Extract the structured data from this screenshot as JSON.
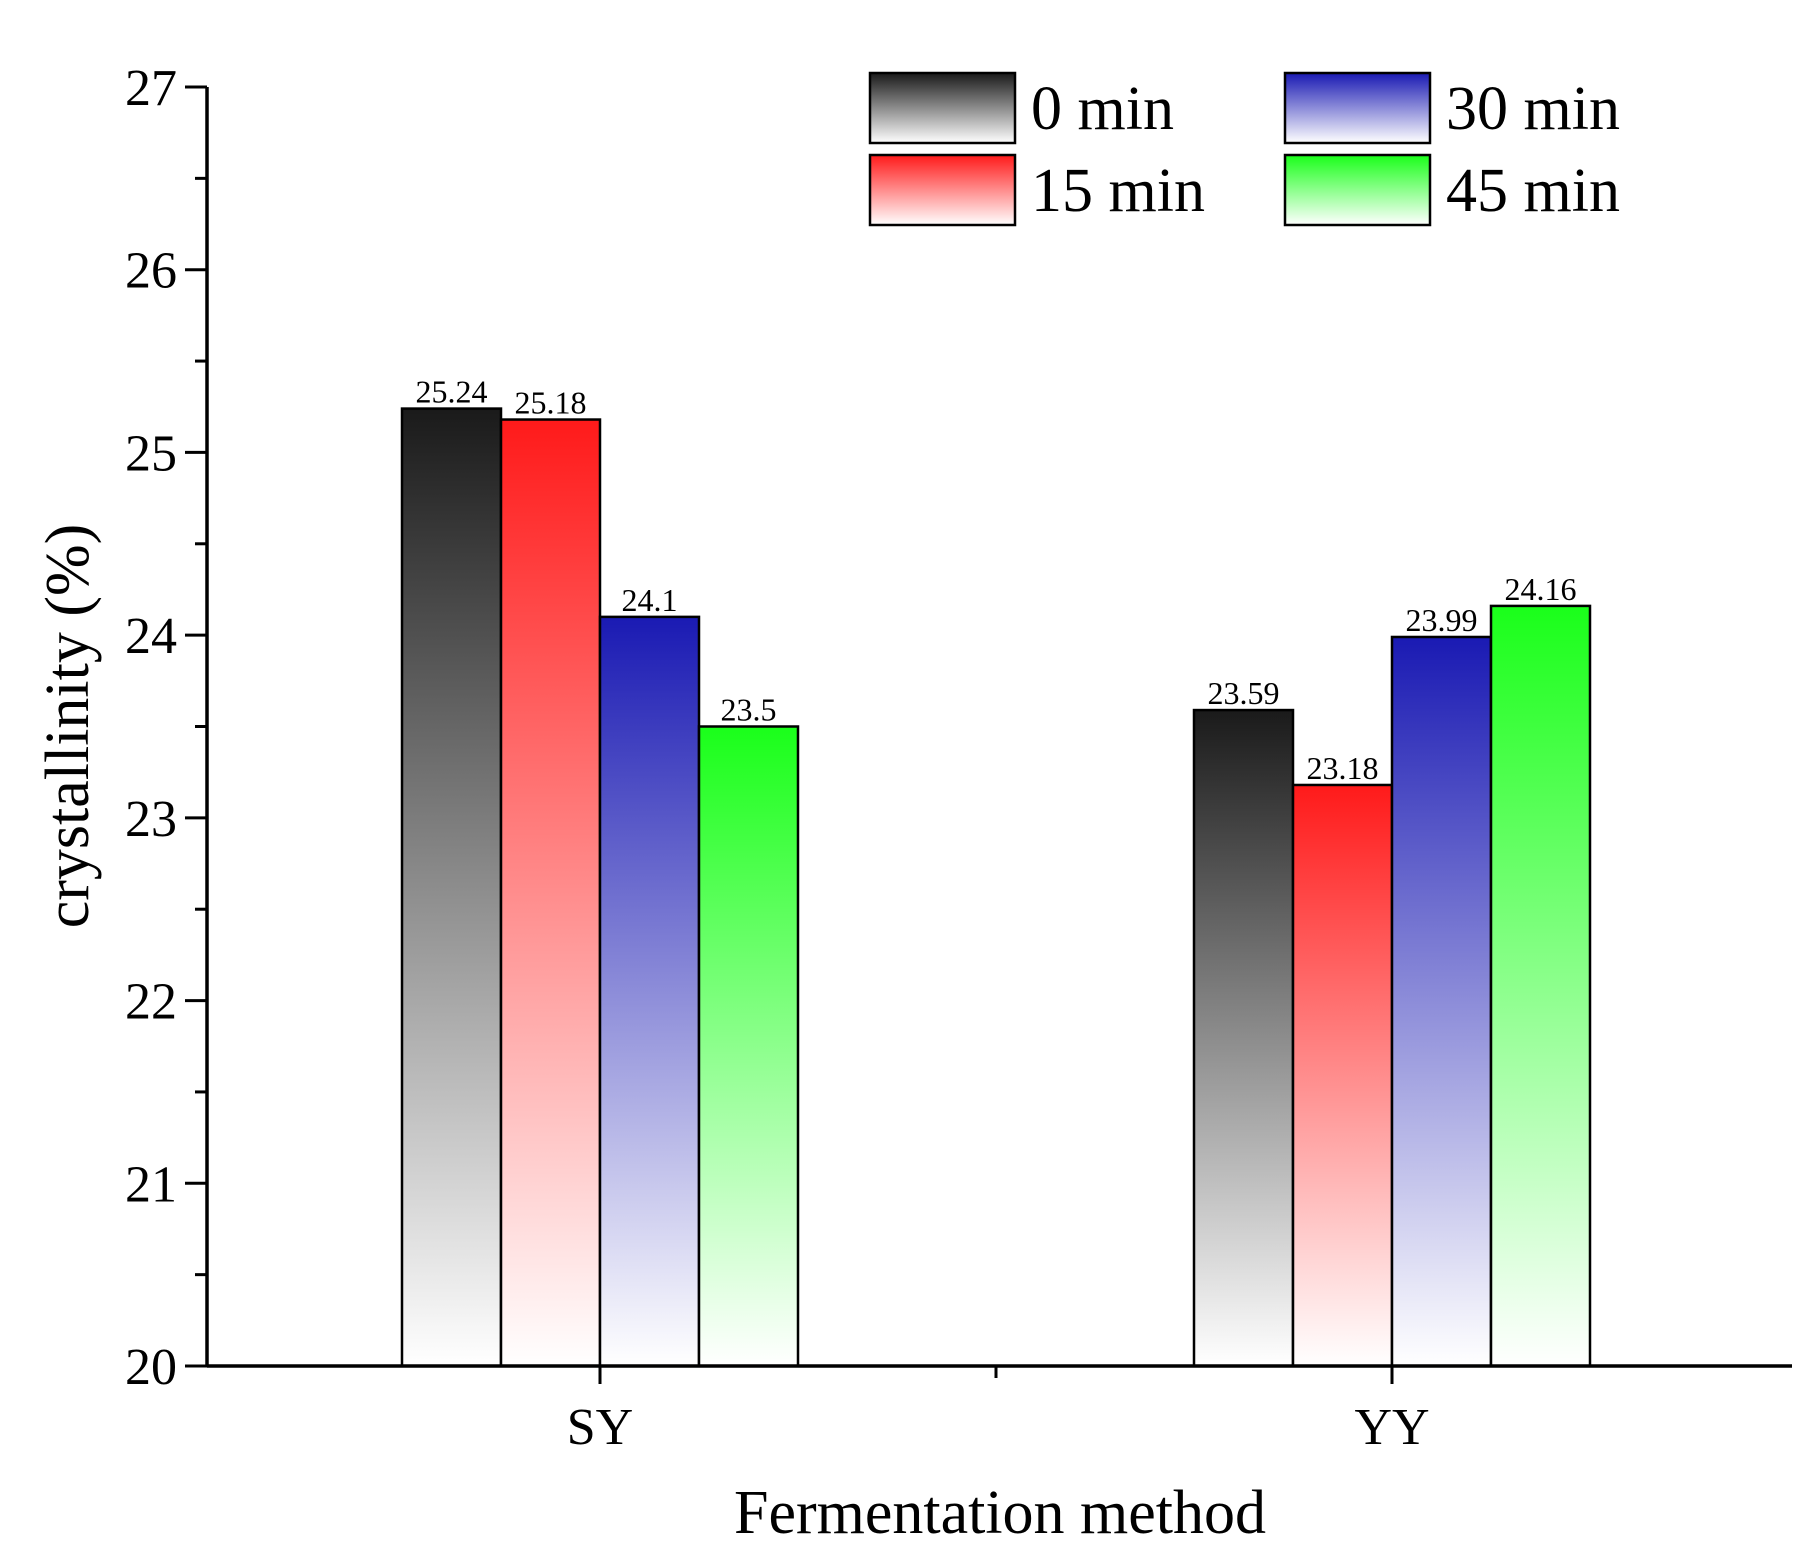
{
  "chart_data": {
    "type": "bar",
    "xlabel": "Fermentation method",
    "ylabel": "crystallinity (%)",
    "ylim": [
      20,
      27
    ],
    "yticks": [
      20,
      21,
      22,
      23,
      24,
      25,
      26,
      27
    ],
    "categories": [
      "SY",
      "YY"
    ],
    "series": [
      {
        "name": "0 min",
        "values": [
          25.24,
          23.59
        ],
        "labels": [
          "25.24",
          "23.59"
        ],
        "color": "#1a1a1a"
      },
      {
        "name": "15 min",
        "values": [
          25.18,
          23.18
        ],
        "labels": [
          "25.18",
          "23.18"
        ],
        "color": "#ff1a1a"
      },
      {
        "name": "30 min",
        "values": [
          24.1,
          23.99
        ],
        "labels": [
          "24.1",
          "23.99"
        ],
        "color": "#1a1ab3"
      },
      {
        "name": "45 min",
        "values": [
          23.5,
          24.16
        ],
        "labels": [
          "23.5",
          "24.16"
        ],
        "color": "#1aff1a"
      }
    ],
    "legend": {
      "placement": "top-right",
      "columns": 2
    },
    "grid": false
  }
}
